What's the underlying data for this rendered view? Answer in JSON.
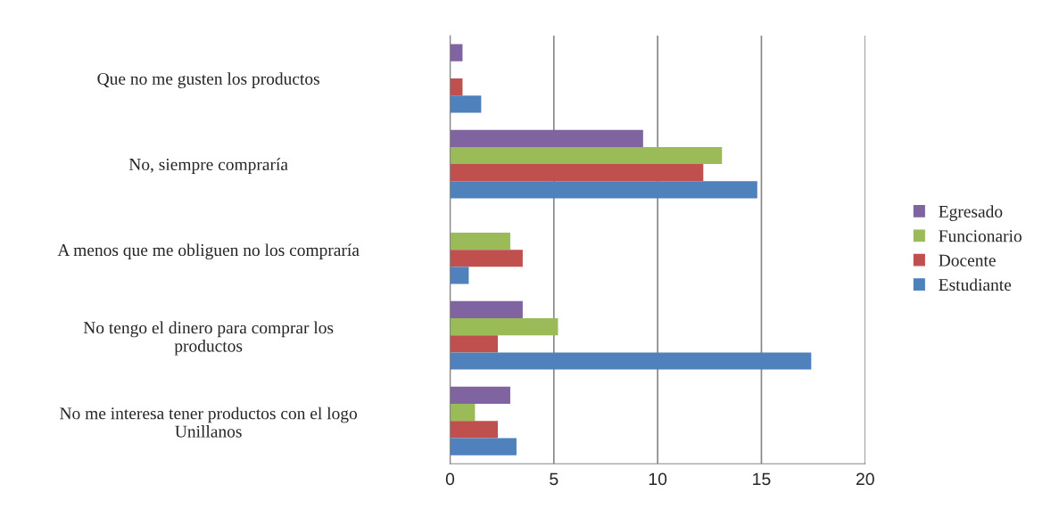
{
  "chart_data": {
    "type": "bar",
    "orientation": "horizontal",
    "categories": [
      "Que no me gusten los productos",
      "No, siempre compraría",
      "A menos que me obliguen no los compraría",
      "No tengo el dinero para comprar los productos",
      "No me interesa tener productos con el logo Unillanos"
    ],
    "series": [
      {
        "name": "Egresado",
        "color": "#8064a2",
        "values": [
          0.6,
          9.3,
          null,
          3.5,
          2.9
        ]
      },
      {
        "name": "Funcionario",
        "color": "#9bbb59",
        "values": [
          null,
          13.1,
          2.9,
          5.2,
          1.2
        ]
      },
      {
        "name": "Docente",
        "color": "#c0504d",
        "values": [
          0.6,
          12.2,
          3.5,
          2.3,
          2.3
        ]
      },
      {
        "name": "Estudiante",
        "color": "#4f81bd",
        "values": [
          1.5,
          14.8,
          0.9,
          17.4,
          3.2
        ]
      }
    ],
    "xlim": [
      0,
      20
    ],
    "xticks": [
      0,
      5,
      10,
      15,
      20
    ],
    "grid": "x",
    "legend": "right"
  }
}
